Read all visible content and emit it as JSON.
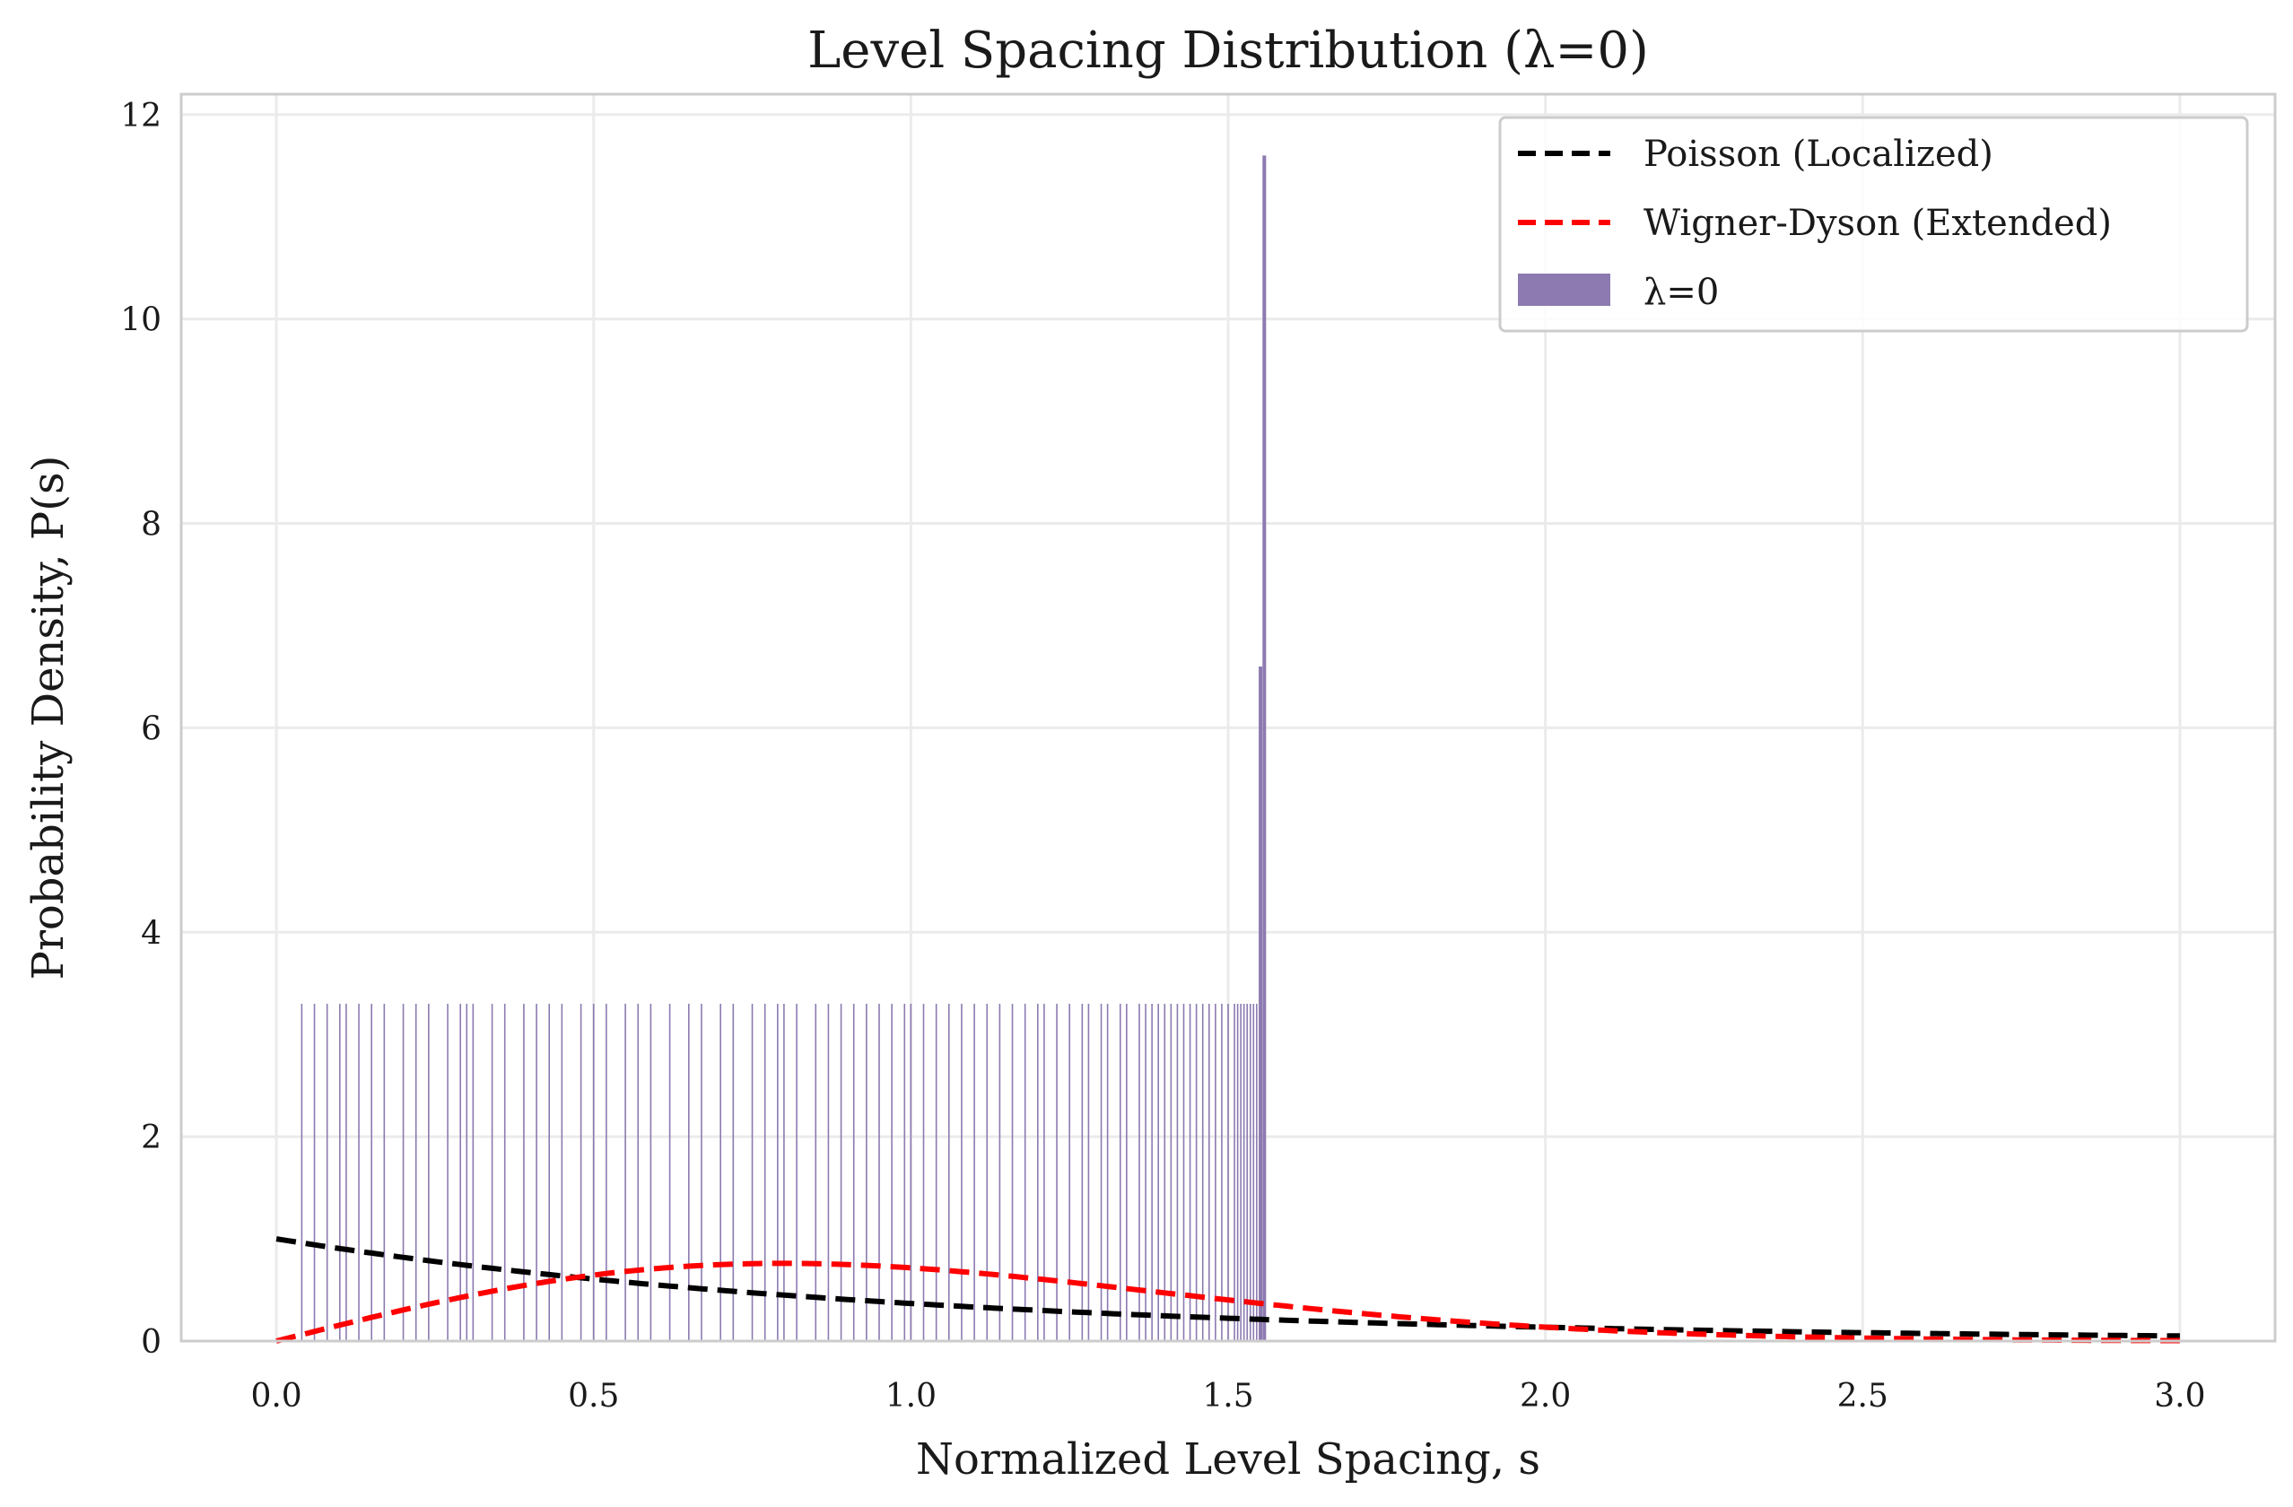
{
  "chart_data": {
    "type": "bar",
    "title": "Level Spacing Distribution (λ=0)",
    "xlabel": "Normalized Level Spacing, s",
    "ylabel": "Probability Density, P(s)",
    "xlim": [
      -0.15,
      3.15
    ],
    "ylim": [
      0,
      12.2
    ],
    "xticks": [
      0.0,
      0.5,
      1.0,
      1.5,
      2.0,
      2.5,
      3.0
    ],
    "xtick_labels": [
      "0.0",
      "0.5",
      "1.0",
      "1.5",
      "2.0",
      "2.5",
      "3.0"
    ],
    "yticks": [
      0,
      2,
      4,
      6,
      8,
      10,
      12
    ],
    "ytick_labels": [
      "0",
      "2",
      "4",
      "6",
      "8",
      "10",
      "12"
    ],
    "grid": true,
    "legend_position": "top-right",
    "histogram": {
      "name": "λ=0",
      "color": "#8c7ab0",
      "bar_height": 3.3,
      "bar_positions": [
        0.04,
        0.06,
        0.08,
        0.1,
        0.11,
        0.13,
        0.15,
        0.17,
        0.2,
        0.22,
        0.24,
        0.27,
        0.29,
        0.3,
        0.31,
        0.34,
        0.36,
        0.39,
        0.41,
        0.43,
        0.45,
        0.48,
        0.5,
        0.52,
        0.55,
        0.57,
        0.59,
        0.62,
        0.65,
        0.67,
        0.7,
        0.72,
        0.75,
        0.77,
        0.79,
        0.8,
        0.82,
        0.85,
        0.87,
        0.89,
        0.91,
        0.93,
        0.95,
        0.97,
        0.99,
        1.0,
        1.02,
        1.04,
        1.06,
        1.08,
        1.1,
        1.12,
        1.14,
        1.16,
        1.18,
        1.2,
        1.21,
        1.23,
        1.25,
        1.27,
        1.28,
        1.3,
        1.31,
        1.33,
        1.34,
        1.36,
        1.37,
        1.38,
        1.39,
        1.4,
        1.41,
        1.42,
        1.43,
        1.44,
        1.45,
        1.46,
        1.47,
        1.48,
        1.49,
        1.5,
        1.51,
        1.515,
        1.52,
        1.525,
        1.53,
        1.535,
        1.54,
        1.545
      ],
      "spikes": [
        {
          "x": 1.551,
          "height": 6.6
        },
        {
          "x": 1.557,
          "height": 11.6
        }
      ]
    },
    "series": [
      {
        "name": "Poisson (Localized)",
        "color": "#000000",
        "style": "dashed",
        "formula": "exp(-s)"
      },
      {
        "name": "Wigner-Dyson (Extended)",
        "color": "#ff0000",
        "style": "dashed",
        "formula": "(pi/2) s exp(-pi s^2 / 4)"
      }
    ],
    "legend": [
      "Poisson (Localized)",
      "Wigner-Dyson (Extended)",
      "λ=0"
    ]
  }
}
